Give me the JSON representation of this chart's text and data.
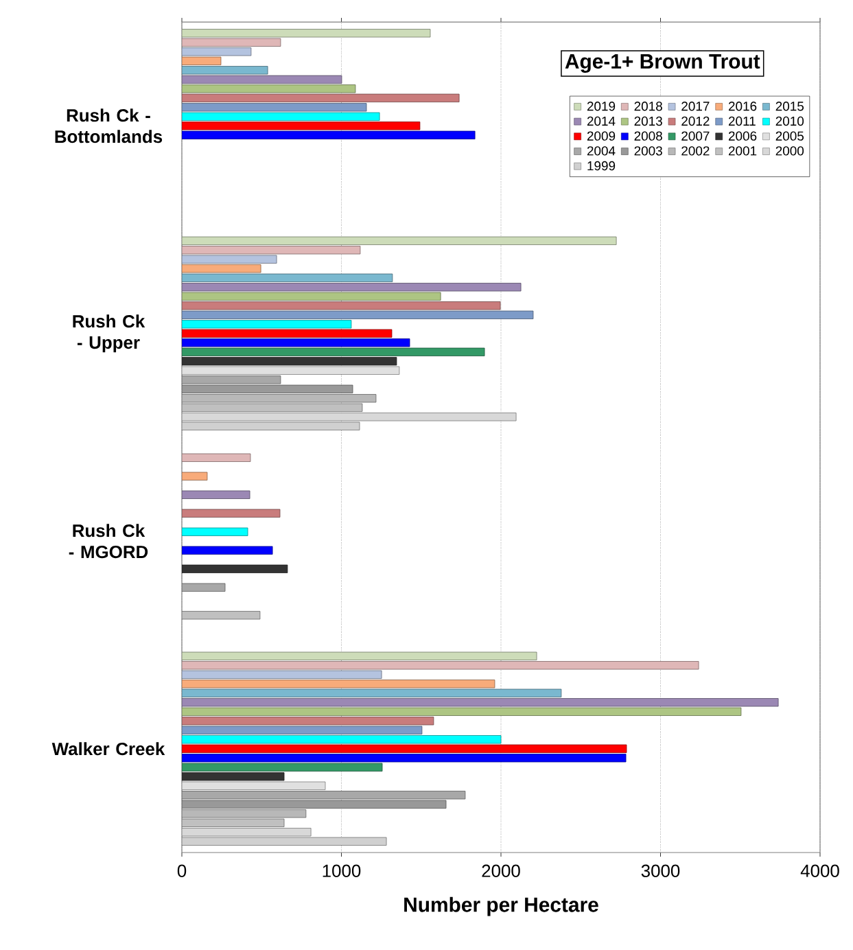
{
  "chart_data": {
    "type": "bar",
    "orientation": "horizontal",
    "title": "Age-1+ Brown Trout",
    "xlabel": "Number per Hectare",
    "categories": [
      "Rush Ck - Bottomlands",
      "Rush Ck - Upper",
      "Rush Ck - MGORD",
      "Walker Creek"
    ],
    "xlim": [
      0,
      4000
    ],
    "xticks": [
      0,
      1000,
      2000,
      3000,
      4000
    ],
    "grid": "x",
    "legend": "top right",
    "series": [
      {
        "name": "2019",
        "color": "#cddcb9",
        "values": [
          1557,
          2723,
          null,
          2224
        ]
      },
      {
        "name": "2018",
        "color": "#dfb7b7",
        "values": [
          619,
          1118,
          430,
          3239
        ]
      },
      {
        "name": "2017",
        "color": "#b4c3df",
        "values": [
          434,
          594,
          null,
          1252
        ]
      },
      {
        "name": "2016",
        "color": "#f8ab7a",
        "values": [
          245,
          495,
          159,
          1961
        ]
      },
      {
        "name": "2015",
        "color": "#7ab8cf",
        "values": [
          538,
          1320,
          null,
          2378
        ]
      },
      {
        "name": "2014",
        "color": "#9b88b4",
        "values": [
          1002,
          2125,
          426,
          3738
        ]
      },
      {
        "name": "2013",
        "color": "#adc583",
        "values": [
          1088,
          1622,
          null,
          3505
        ]
      },
      {
        "name": "2012",
        "color": "#c97c7c",
        "values": [
          1738,
          1996,
          615,
          1578
        ]
      },
      {
        "name": "2011",
        "color": "#7d9bc8",
        "values": [
          1157,
          2202,
          null,
          1505
        ]
      },
      {
        "name": "2010",
        "color": "#00ffff",
        "values": [
          1239,
          1062,
          413,
          2000
        ]
      },
      {
        "name": "2009",
        "color": "#ff0000",
        "values": [
          1492,
          1316,
          null,
          2787
        ]
      },
      {
        "name": "2008",
        "color": "#0000ff",
        "values": [
          1837,
          1428,
          568,
          2783
        ]
      },
      {
        "name": "2007",
        "color": "#339966",
        "values": [
          null,
          1897,
          null,
          1256
        ]
      },
      {
        "name": "2006",
        "color": "#333333",
        "values": [
          null,
          1346,
          662,
          641
        ]
      },
      {
        "name": "2005",
        "color": "#e0e0e0",
        "values": [
          null,
          1363,
          null,
          899
        ]
      },
      {
        "name": "2004",
        "color": "#a8a8a8",
        "values": [
          null,
          619,
          271,
          1776
        ]
      },
      {
        "name": "2003",
        "color": "#999999",
        "values": [
          null,
          1071,
          null,
          1656
        ]
      },
      {
        "name": "2002",
        "color": "#b8b8b8",
        "values": [
          null,
          1217,
          null,
          778
        ]
      },
      {
        "name": "2001",
        "color": "#c0c0c0",
        "values": [
          null,
          1131,
          490,
          641
        ]
      },
      {
        "name": "2000",
        "color": "#d8d8d8",
        "values": [
          null,
          2095,
          null,
          809
        ]
      },
      {
        "name": "1999",
        "color": "#d0d0d0",
        "values": [
          null,
          1114,
          null,
          1282
        ]
      }
    ]
  }
}
